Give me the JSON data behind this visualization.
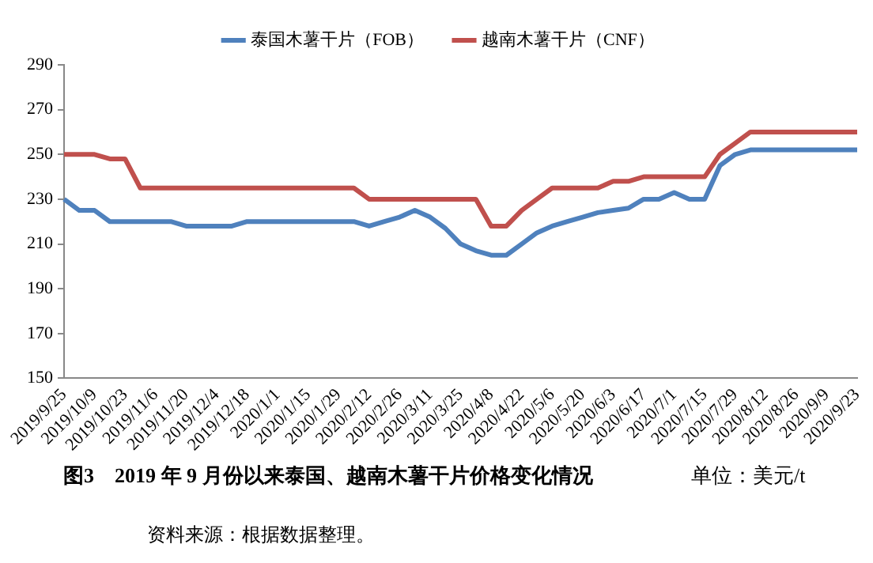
{
  "chart_data": {
    "type": "line",
    "title": "图3　2019 年 9 月份以来泰国、越南木薯干片价格变化情况",
    "annotations": [
      "单位：美元/t",
      "资料来源：根据数据整理。"
    ],
    "categories": [
      "2019/9/25",
      null,
      "2019/10/9",
      null,
      "2019/10/23",
      null,
      "2019/11/6",
      null,
      "2019/11/20",
      null,
      "2019/12/4",
      null,
      "2019/12/18",
      null,
      "2020/1/1",
      null,
      "2020/1/15",
      null,
      "2020/1/29",
      null,
      "2020/2/12",
      null,
      "2020/2/26",
      null,
      "2020/3/11",
      null,
      "2020/3/25",
      null,
      "2020/4/8",
      null,
      "2020/4/22",
      null,
      "2020/5/6",
      null,
      "2020/5/20",
      null,
      "2020/6/3",
      null,
      "2020/6/17",
      null,
      "2020/7/1",
      null,
      "2020/7/15",
      null,
      "2020/7/29",
      null,
      "2020/8/12",
      null,
      "2020/8/26",
      null,
      "2020/9/9",
      null,
      "2020/9/23"
    ],
    "series": [
      {
        "name": "泰国木薯干片（FOB）",
        "color": "#4f81bd",
        "values": [
          230,
          225,
          225,
          220,
          220,
          220,
          220,
          220,
          218,
          218,
          218,
          218,
          220,
          220,
          220,
          220,
          220,
          220,
          220,
          220,
          218,
          220,
          222,
          225,
          222,
          217,
          210,
          207,
          205,
          205,
          210,
          215,
          218,
          220,
          222,
          224,
          225,
          226,
          230,
          230,
          233,
          230,
          230,
          245,
          250,
          252,
          252,
          252,
          252,
          252,
          252,
          252,
          252
        ]
      },
      {
        "name": "越南木薯干片（CNF）",
        "color": "#c0504d",
        "values": [
          250,
          250,
          250,
          248,
          248,
          235,
          235,
          235,
          235,
          235,
          235,
          235,
          235,
          235,
          235,
          235,
          235,
          235,
          235,
          235,
          230,
          230,
          230,
          230,
          230,
          230,
          230,
          230,
          218,
          218,
          225,
          230,
          235,
          235,
          235,
          235,
          238,
          238,
          240,
          240,
          240,
          240,
          240,
          250,
          255,
          260,
          260,
          260,
          260,
          260,
          260,
          260,
          260
        ]
      }
    ],
    "ylim": [
      150,
      290
    ],
    "yticks": [
      150,
      170,
      190,
      210,
      230,
      250,
      270,
      290
    ],
    "grid": false,
    "legend": "top",
    "marker": "none",
    "line_style": "solid"
  }
}
